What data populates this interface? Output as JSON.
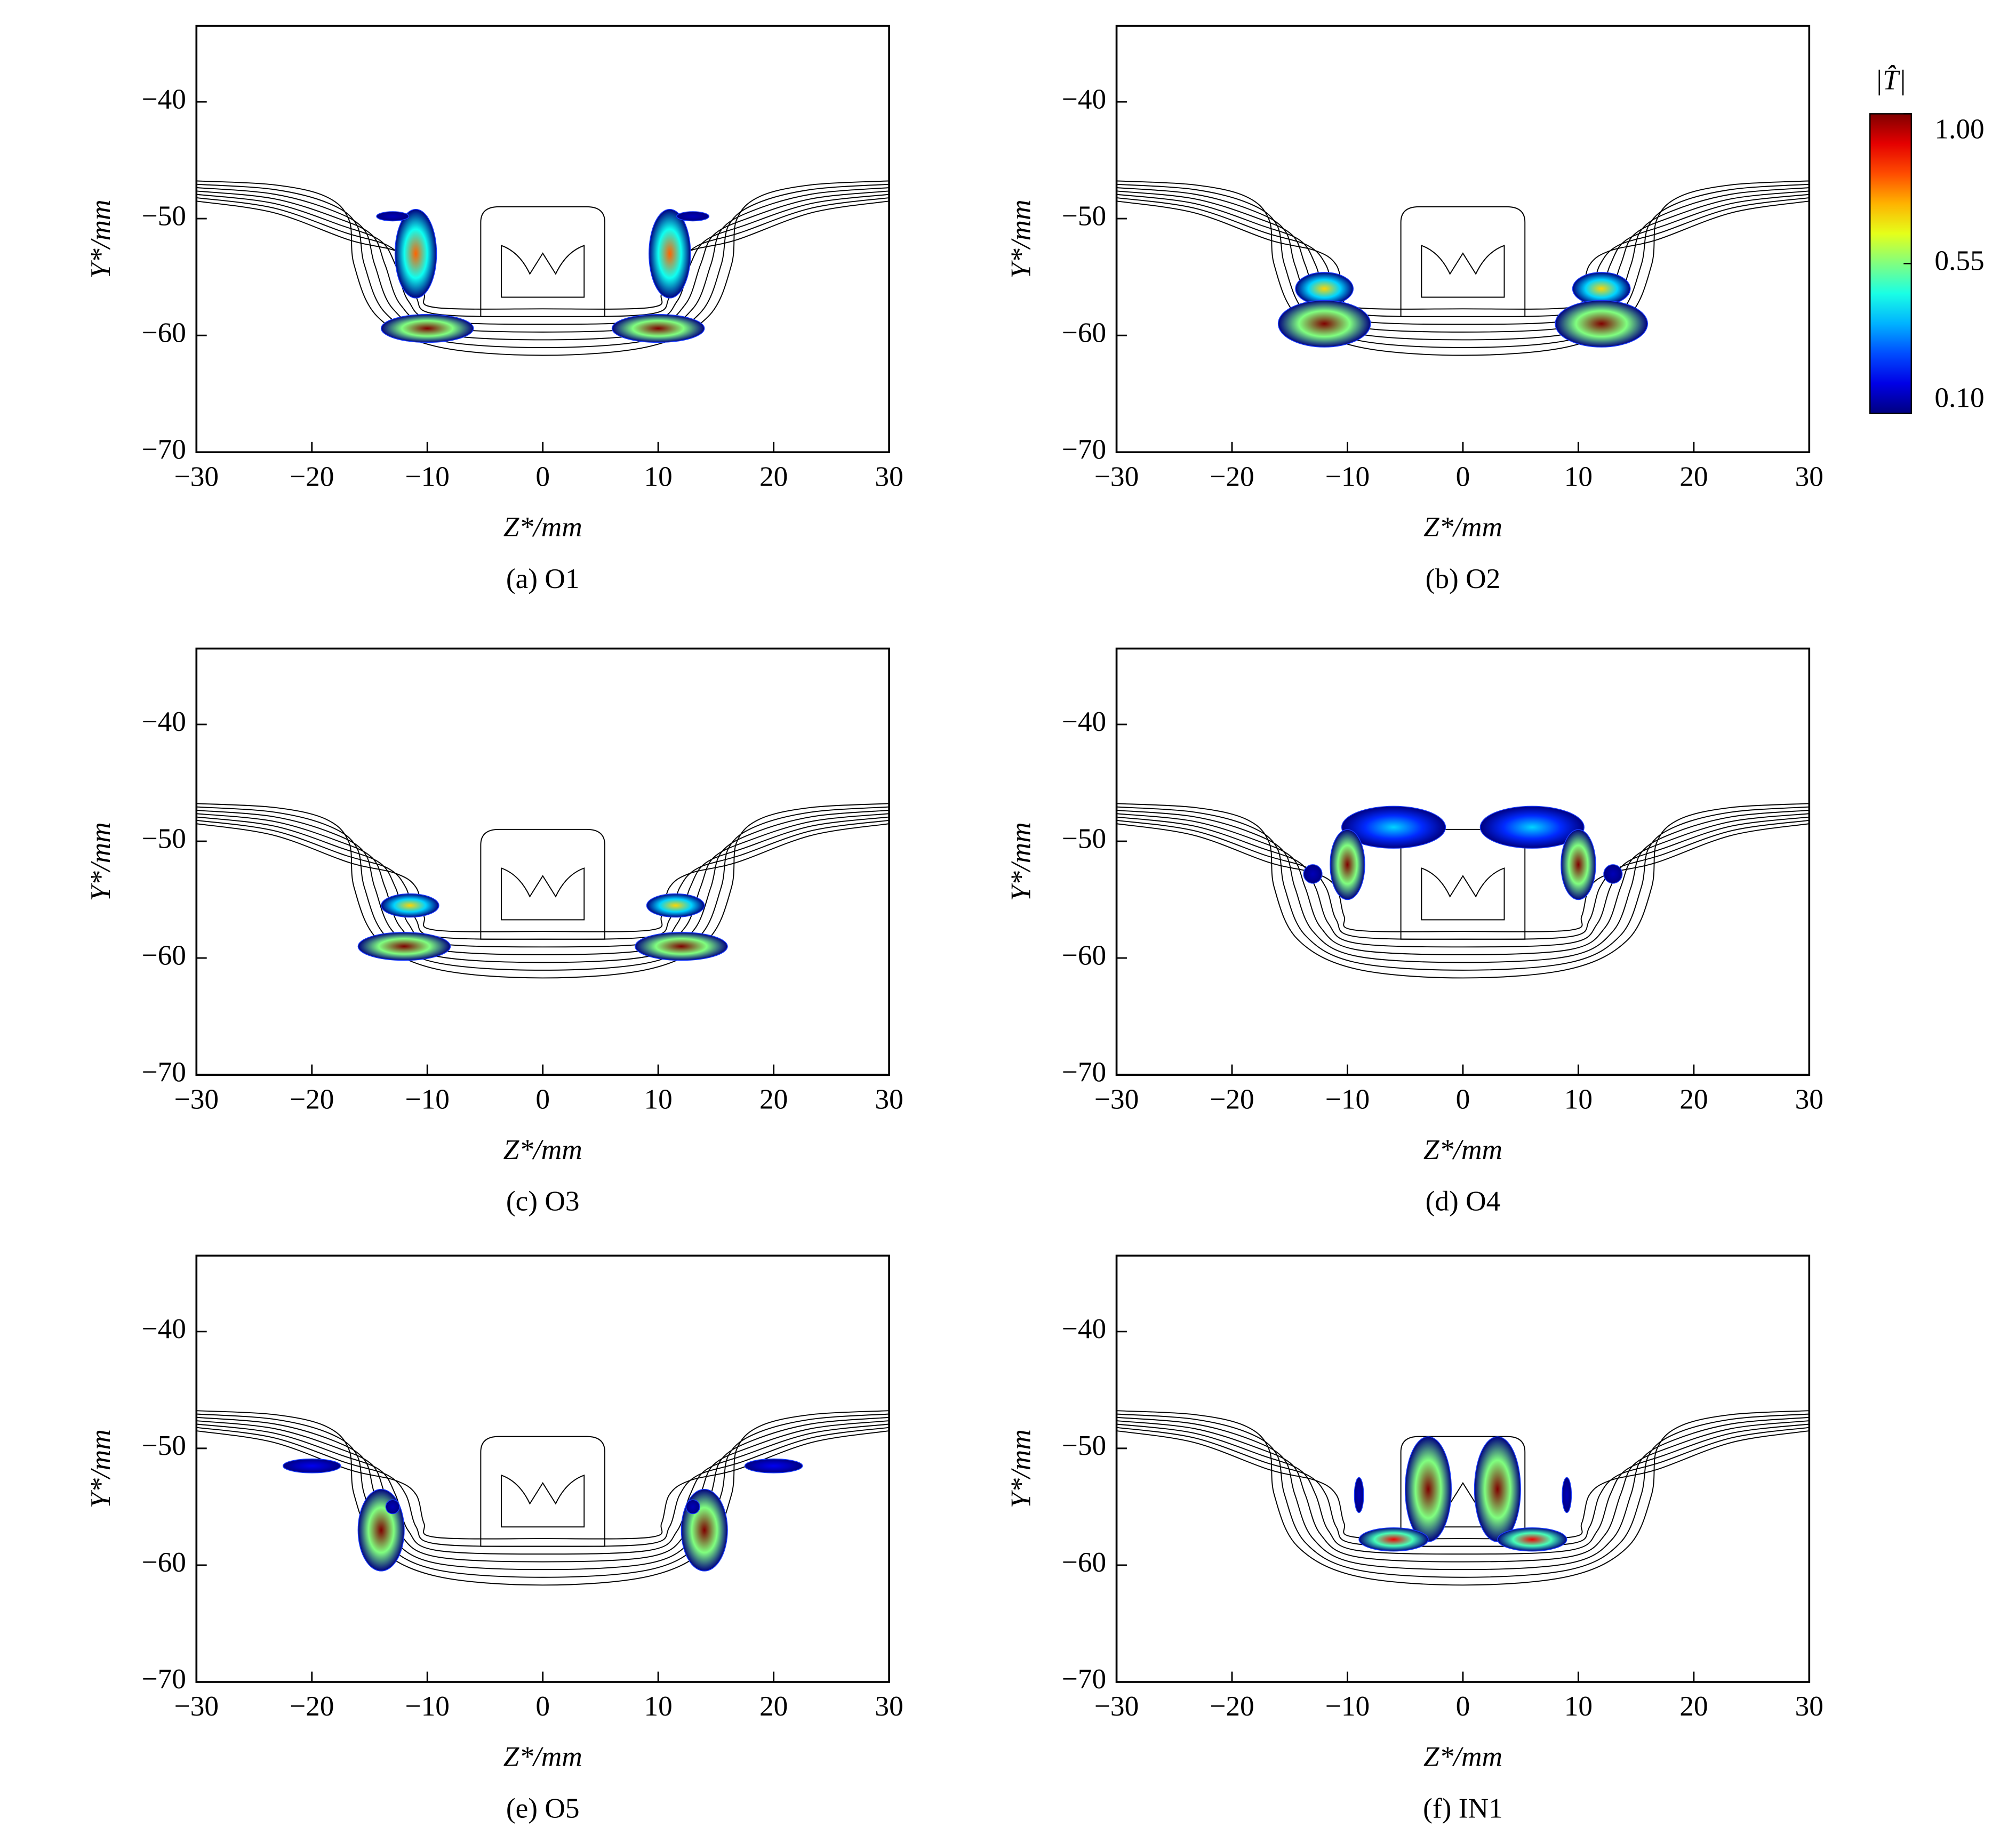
{
  "chart_data": [
    {
      "type": "contour",
      "caption": "(a) O1",
      "xlabel": "Z*/mm",
      "ylabel": "Y*/mm",
      "xlim": [
        -30,
        30
      ],
      "ylim": [
        -70,
        -33.5
      ],
      "xticks": [
        {
          "value": -30,
          "label": "−30"
        },
        {
          "value": -20,
          "label": "−20"
        },
        {
          "value": -10,
          "label": "−10"
        },
        0,
        10,
        20,
        30
      ],
      "yticks": [
        {
          "value": -70,
          "label": "−70"
        },
        {
          "value": -60,
          "label": "−60"
        },
        {
          "value": -50,
          "label": "−50"
        },
        {
          "value": -40,
          "label": "−40"
        }
      ],
      "regions": [
        {
          "z": -11,
          "y": -53,
          "rz": 1.8,
          "ry": 3.8,
          "peak": 0.8
        },
        {
          "z": -10,
          "y": -59.4,
          "rz": 4,
          "ry": 1.2,
          "peak": 1.0
        },
        {
          "z": -13,
          "y": -49.8,
          "rz": 1.4,
          "ry": 0.4,
          "peak": 0.15
        },
        {
          "z": 11,
          "y": -53,
          "rz": 1.8,
          "ry": 3.8,
          "peak": 0.8
        },
        {
          "z": 10,
          "y": -59.4,
          "rz": 4,
          "ry": 1.2,
          "peak": 1.0
        },
        {
          "z": 13,
          "y": -49.8,
          "rz": 1.4,
          "ry": 0.4,
          "peak": 0.15
        }
      ]
    },
    {
      "type": "contour",
      "caption": "(b) O2",
      "xlabel": "Z*/mm",
      "ylabel": "Y*/mm",
      "xlim": [
        -30,
        30
      ],
      "ylim": [
        -70,
        -33.5
      ],
      "xticks": [
        {
          "value": -30,
          "label": "−30"
        },
        {
          "value": -20,
          "label": "−20"
        },
        {
          "value": -10,
          "label": "−10"
        },
        0,
        10,
        20,
        30
      ],
      "yticks": [
        {
          "value": -70,
          "label": "−70"
        },
        {
          "value": -60,
          "label": "−60"
        },
        {
          "value": -50,
          "label": "−50"
        },
        {
          "value": -40,
          "label": "−40"
        }
      ],
      "regions": [
        {
          "z": -12,
          "y": -56,
          "rz": 2.5,
          "ry": 1.4,
          "peak": 0.7
        },
        {
          "z": -12,
          "y": -59,
          "rz": 4,
          "ry": 2,
          "peak": 1.0
        },
        {
          "z": 12,
          "y": -56,
          "rz": 2.5,
          "ry": 1.4,
          "peak": 0.7
        },
        {
          "z": 12,
          "y": -59,
          "rz": 4,
          "ry": 2,
          "peak": 1.0
        }
      ]
    },
    {
      "type": "contour",
      "caption": "(c) O3",
      "xlabel": "Z*/mm",
      "ylabel": "Y*/mm",
      "xlim": [
        -30,
        30
      ],
      "ylim": [
        -70,
        -33.5
      ],
      "xticks": [
        {
          "value": -30,
          "label": "−30"
        },
        {
          "value": -20,
          "label": "−20"
        },
        {
          "value": -10,
          "label": "−10"
        },
        0,
        10,
        20,
        30
      ],
      "yticks": [
        {
          "value": -70,
          "label": "−70"
        },
        {
          "value": -60,
          "label": "−60"
        },
        {
          "value": -50,
          "label": "−50"
        },
        {
          "value": -40,
          "label": "−40"
        }
      ],
      "regions": [
        {
          "z": -11.5,
          "y": -55.5,
          "rz": 2.5,
          "ry": 1,
          "peak": 0.7
        },
        {
          "z": -12,
          "y": -59,
          "rz": 4,
          "ry": 1.2,
          "peak": 1.0
        },
        {
          "z": 11.5,
          "y": -55.5,
          "rz": 2.5,
          "ry": 1,
          "peak": 0.7
        },
        {
          "z": 12,
          "y": -59,
          "rz": 4,
          "ry": 1.2,
          "peak": 1.0
        }
      ]
    },
    {
      "type": "contour",
      "caption": "(d) O4",
      "xlabel": "Z*/mm",
      "ylabel": "Y*/mm",
      "xlim": [
        -30,
        30
      ],
      "ylim": [
        -70,
        -33.5
      ],
      "xticks": [
        {
          "value": -30,
          "label": "−30"
        },
        {
          "value": -20,
          "label": "−20"
        },
        {
          "value": -10,
          "label": "−10"
        },
        0,
        10,
        20,
        30
      ],
      "yticks": [
        {
          "value": -70,
          "label": "−70"
        },
        {
          "value": -60,
          "label": "−60"
        },
        {
          "value": -50,
          "label": "−50"
        },
        {
          "value": -40,
          "label": "−40"
        }
      ],
      "regions": [
        {
          "z": -6,
          "y": -48.8,
          "rz": 4.5,
          "ry": 1.8,
          "peak": 0.4
        },
        {
          "z": -10,
          "y": -52,
          "rz": 1.5,
          "ry": 3,
          "peak": 1.0
        },
        {
          "z": -13,
          "y": -52.8,
          "rz": 0.8,
          "ry": 0.8,
          "peak": 0.15
        },
        {
          "z": 6,
          "y": -48.8,
          "rz": 4.5,
          "ry": 1.8,
          "peak": 0.4
        },
        {
          "z": 10,
          "y": -52,
          "rz": 1.5,
          "ry": 3,
          "peak": 1.0
        },
        {
          "z": 13,
          "y": -52.8,
          "rz": 0.8,
          "ry": 0.8,
          "peak": 0.15
        }
      ]
    },
    {
      "type": "contour",
      "caption": "(e) O5",
      "xlabel": "Z*/mm",
      "ylabel": "Y*/mm",
      "xlim": [
        -30,
        30
      ],
      "ylim": [
        -70,
        -33.5
      ],
      "xticks": [
        {
          "value": -30,
          "label": "−30"
        },
        {
          "value": -20,
          "label": "−20"
        },
        {
          "value": -10,
          "label": "−10"
        },
        0,
        10,
        20,
        30
      ],
      "yticks": [
        {
          "value": -70,
          "label": "−70"
        },
        {
          "value": -60,
          "label": "−60"
        },
        {
          "value": -50,
          "label": "−50"
        },
        {
          "value": -40,
          "label": "−40"
        }
      ],
      "regions": [
        {
          "z": -20,
          "y": -51.5,
          "rz": 2.5,
          "ry": 0.6,
          "peak": 0.2
        },
        {
          "z": -14,
          "y": -57,
          "rz": 2,
          "ry": 3.5,
          "peak": 1.0
        },
        {
          "z": -13,
          "y": -55,
          "rz": 0.6,
          "ry": 0.6,
          "peak": 0.15
        },
        {
          "z": 20,
          "y": -51.5,
          "rz": 2.5,
          "ry": 0.6,
          "peak": 0.2
        },
        {
          "z": 14,
          "y": -57,
          "rz": 2,
          "ry": 3.5,
          "peak": 1.0
        },
        {
          "z": 13,
          "y": -55,
          "rz": 0.6,
          "ry": 0.6,
          "peak": 0.15
        }
      ]
    },
    {
      "type": "contour",
      "caption": "(f) IN1",
      "xlabel": "Z*/mm",
      "ylabel": "Y*/mm",
      "xlim": [
        -30,
        30
      ],
      "ylim": [
        -70,
        -33.5
      ],
      "xticks": [
        {
          "value": -30,
          "label": "−30"
        },
        {
          "value": -20,
          "label": "−20"
        },
        {
          "value": -10,
          "label": "−10"
        },
        0,
        10,
        20,
        30
      ],
      "yticks": [
        {
          "value": -70,
          "label": "−70"
        },
        {
          "value": -60,
          "label": "−60"
        },
        {
          "value": -50,
          "label": "−50"
        },
        {
          "value": -40,
          "label": "−40"
        }
      ],
      "regions": [
        {
          "z": -3,
          "y": -53.5,
          "rz": 2,
          "ry": 4.5,
          "peak": 1.0
        },
        {
          "z": -6,
          "y": -57.8,
          "rz": 3,
          "ry": 1,
          "peak": 0.9
        },
        {
          "z": -9,
          "y": -54,
          "rz": 0.4,
          "ry": 1.5,
          "peak": 0.15
        },
        {
          "z": 3,
          "y": -53.5,
          "rz": 2,
          "ry": 4.5,
          "peak": 1.0
        },
        {
          "z": 6,
          "y": -57.8,
          "rz": 3,
          "ry": 1,
          "peak": 0.9
        },
        {
          "z": 9,
          "y": -54,
          "rz": 0.4,
          "ry": 1.5,
          "peak": 0.15
        }
      ]
    }
  ],
  "colorbar": {
    "title": "|T̂|",
    "range": [
      0.1,
      1.0
    ],
    "ticks": [
      {
        "value": 1.0,
        "label": "1.00"
      },
      {
        "value": 0.55,
        "label": "0.55"
      },
      {
        "value": 0.1,
        "label": "0.10"
      }
    ]
  }
}
